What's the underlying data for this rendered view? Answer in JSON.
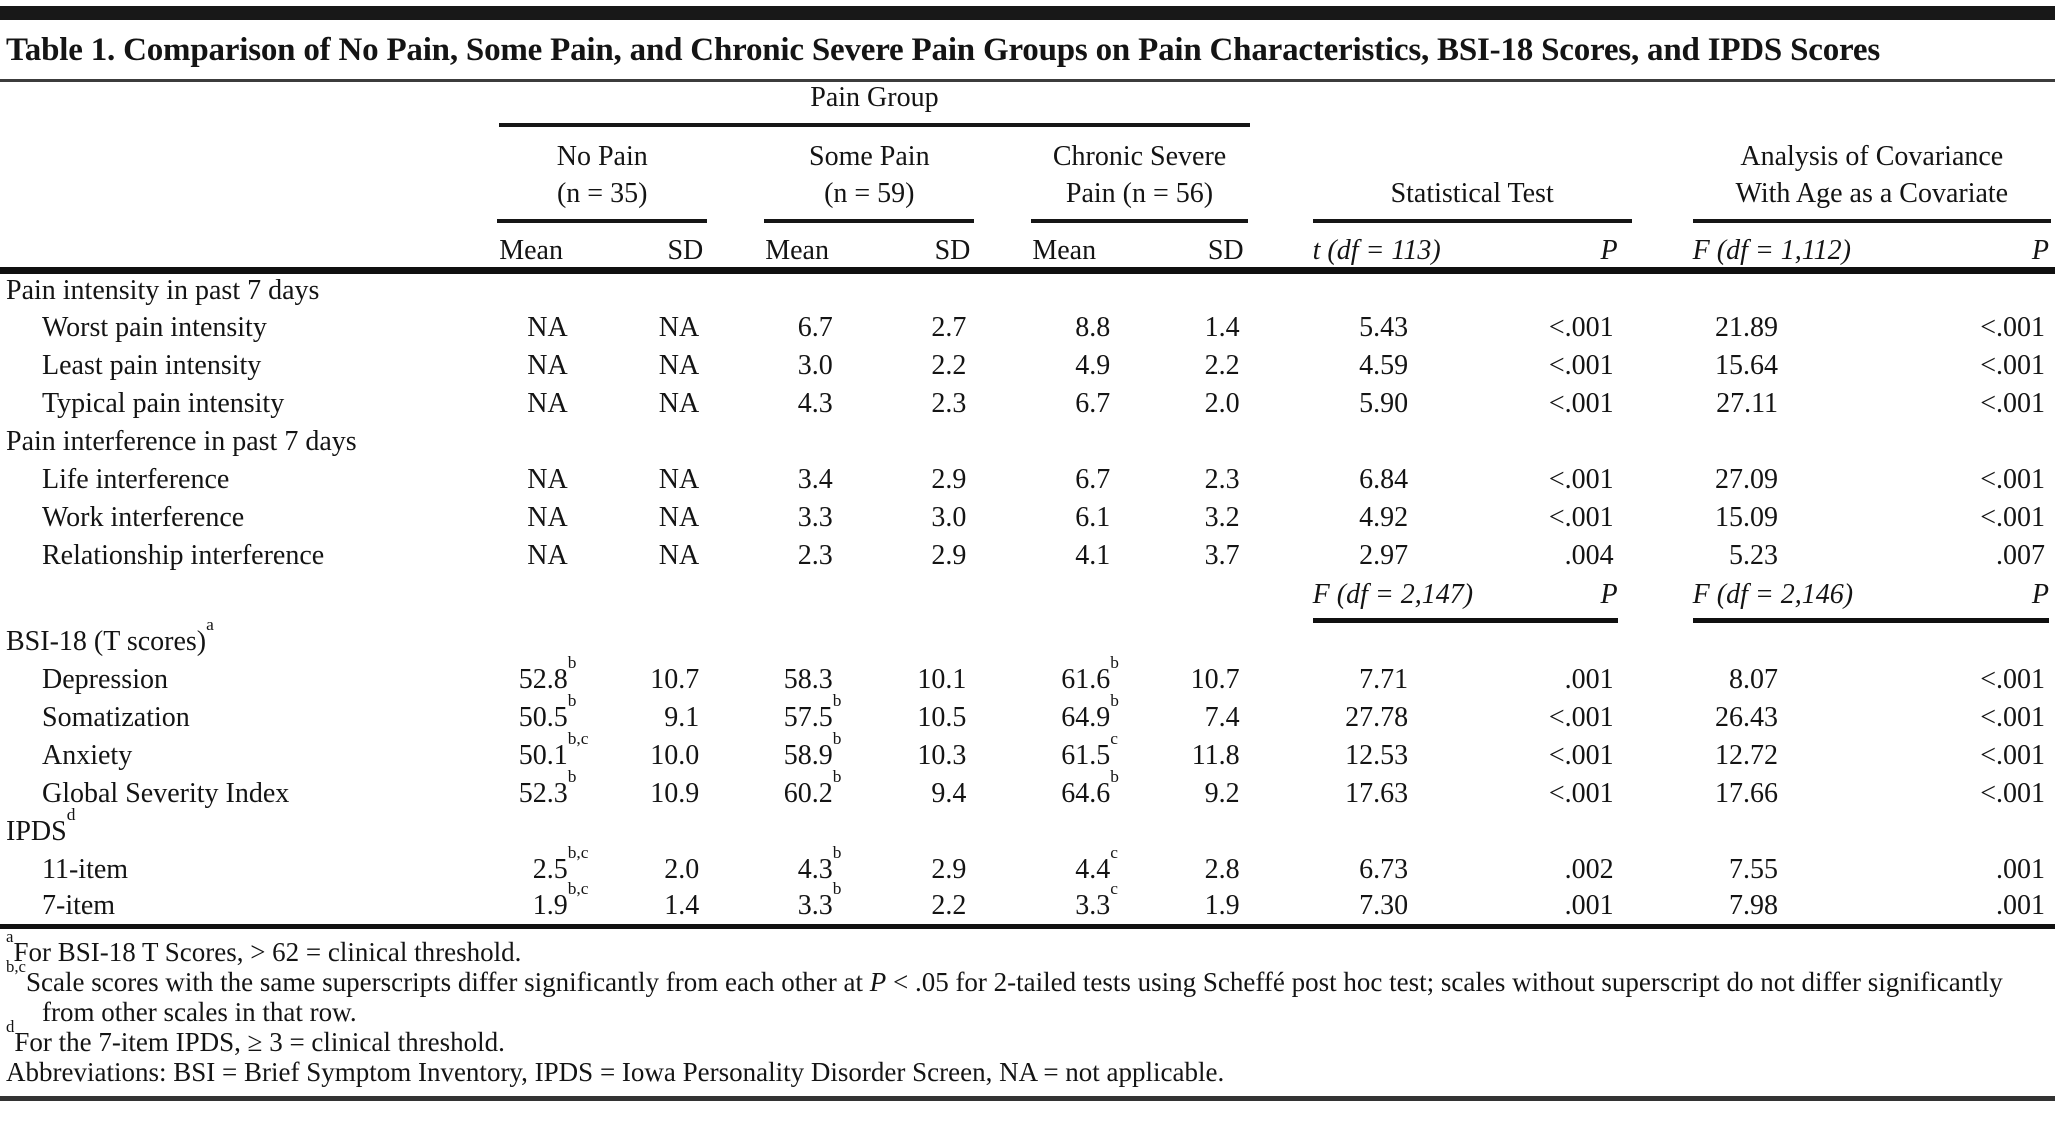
{
  "title": "Table 1. Comparison of No Pain, Some Pain, and Chronic Severe Pain Groups on Pain Characteristics, BSI-18 Scores, and IPDS Scores",
  "header": {
    "pain_group": "Pain Group",
    "groups": [
      {
        "line1": "No Pain",
        "line2": "(n = 35)"
      },
      {
        "line1": "Some Pain",
        "line2": "(n = 59)"
      },
      {
        "line1": "Chronic Severe",
        "line2": "Pain (n = 56)"
      }
    ],
    "stat_test": "Statistical Test",
    "ancova_line1": "Analysis of Covariance",
    "ancova_line2": "With Age as a Covariate",
    "sub": {
      "mean": "Mean",
      "sd": "SD",
      "t": "t (df = 113)",
      "p": "P",
      "f": "F (df = 1,112)"
    }
  },
  "mid_header": {
    "f_left": "F (df = 2,147)",
    "p_left": "P",
    "f_right": "F (df = 2,146)",
    "p_right": "P"
  },
  "rows": [
    {
      "type": "section",
      "label": "Pain intensity in past 7 days"
    },
    {
      "type": "data",
      "label": "Worst pain intensity",
      "cells": [
        "NA",
        "NA",
        "6.7",
        "2.7",
        "8.8",
        "1.4",
        "5.43",
        "<.001",
        "21.89",
        "<.001"
      ]
    },
    {
      "type": "data",
      "label": "Least pain intensity",
      "cells": [
        "NA",
        "NA",
        "3.0",
        "2.2",
        "4.9",
        "2.2",
        "4.59",
        "<.001",
        "15.64",
        "<.001"
      ]
    },
    {
      "type": "data",
      "label": "Typical pain intensity",
      "cells": [
        "NA",
        "NA",
        "4.3",
        "2.3",
        "6.7",
        "2.0",
        "5.90",
        "<.001",
        "27.11",
        "<.001"
      ]
    },
    {
      "type": "section",
      "label": "Pain interference in past 7 days"
    },
    {
      "type": "data",
      "label": "Life interference",
      "cells": [
        "NA",
        "NA",
        "3.4",
        "2.9",
        "6.7",
        "2.3",
        "6.84",
        "<.001",
        "27.09",
        "<.001"
      ]
    },
    {
      "type": "data",
      "label": "Work interference",
      "cells": [
        "NA",
        "NA",
        "3.3",
        "3.0",
        "6.1",
        "3.2",
        "4.92",
        "<.001",
        "15.09",
        "<.001"
      ]
    },
    {
      "type": "data",
      "label": "Relationship interference",
      "cells": [
        "NA",
        "NA",
        "2.3",
        "2.9",
        "4.1",
        "3.7",
        "2.97",
        ".004",
        "5.23",
        ".007"
      ]
    },
    {
      "type": "midheader"
    },
    {
      "type": "section",
      "label": "BSI-18 (T scores)^a"
    },
    {
      "type": "data",
      "label": "Depression",
      "cells": [
        "52.8^b",
        "10.7",
        "58.3",
        "10.1",
        "61.6^b",
        "10.7",
        "7.71",
        ".001",
        "8.07",
        "<.001"
      ]
    },
    {
      "type": "data",
      "label": "Somatization",
      "cells": [
        "50.5^b",
        "9.1",
        "57.5^b",
        "10.5",
        "64.9^b",
        "7.4",
        "27.78",
        "<.001",
        "26.43",
        "<.001"
      ]
    },
    {
      "type": "data",
      "label": "Anxiety",
      "cells": [
        "50.1^b,c",
        "10.0",
        "58.9^b",
        "10.3",
        "61.5^c",
        "11.8",
        "12.53",
        "<.001",
        "12.72",
        "<.001"
      ]
    },
    {
      "type": "data",
      "label": "Global Severity Index",
      "cells": [
        "52.3^b",
        "10.9",
        "60.2^b",
        "9.4",
        "64.6^b",
        "9.2",
        "17.63",
        "<.001",
        "17.66",
        "<.001"
      ]
    },
    {
      "type": "section",
      "label": "IPDS^d"
    },
    {
      "type": "data",
      "label": "11-item",
      "cells": [
        "2.5^b,c",
        "2.0",
        "4.3^b",
        "2.9",
        "4.4^c",
        "2.8",
        "6.73",
        ".002",
        "7.55",
        ".001"
      ]
    },
    {
      "type": "data",
      "label": "7-item",
      "cells": [
        "1.9^b,c",
        "1.4",
        "3.3^b",
        "2.2",
        "3.3^c",
        "1.9",
        "7.30",
        ".001",
        "7.98",
        ".001"
      ]
    }
  ],
  "footnotes": [
    [
      {
        "sup": "a"
      },
      "For BSI-18 T Scores, > 62 = clinical threshold."
    ],
    [
      {
        "sup": "b,c"
      },
      "Scale scores with the same superscripts differ significantly from each other at ",
      {
        "i": "P"
      },
      " < .05 for 2-tailed tests using Scheffé post hoc test; scales without superscript do not differ significantly from other scales in that row."
    ],
    [
      {
        "sup": "d"
      },
      "For the 7-item IPDS, ≥ 3 = clinical threshold."
    ],
    [
      "Abbreviations: BSI = Brief Symptom Inventory, IPDS = Iowa Personality Disorder Screen, NA = not applicable."
    ]
  ]
}
